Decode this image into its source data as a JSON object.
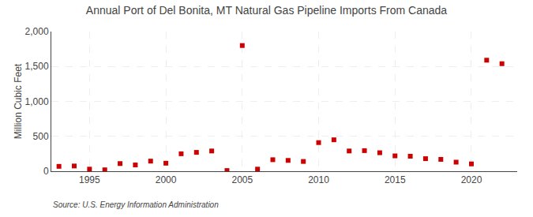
{
  "chart_data": {
    "type": "scatter",
    "title": "Annual Port of Del Bonita, MT Natural Gas Pipeline Imports From Canada",
    "ylabel": "Million Cubic Feet",
    "source": "Source: U.S. Energy Information Administration",
    "x": [
      1993,
      1994,
      1995,
      1996,
      1997,
      1998,
      1999,
      2000,
      2001,
      2002,
      2003,
      2004,
      2005,
      2006,
      2007,
      2008,
      2009,
      2010,
      2011,
      2012,
      2013,
      2014,
      2015,
      2016,
      2017,
      2018,
      2019,
      2020,
      2021,
      2022
    ],
    "values": [
      70,
      75,
      30,
      20,
      110,
      90,
      145,
      115,
      250,
      270,
      290,
      10,
      1800,
      30,
      165,
      155,
      140,
      410,
      450,
      290,
      295,
      265,
      220,
      215,
      180,
      170,
      130,
      105,
      1590,
      1540
    ],
    "color": "#cc0000",
    "marker": "square",
    "xlim": [
      1992.5,
      2023
    ],
    "xticks": [
      1995,
      2000,
      2005,
      2010,
      2015,
      2020
    ],
    "ylim": [
      0,
      2000
    ],
    "yticks": [
      0,
      500,
      {
        "value": 1000,
        "label": "1,000"
      },
      {
        "value": 1500,
        "label": "1,500"
      },
      {
        "value": 2000,
        "label": "2,000"
      }
    ],
    "grid": true
  }
}
